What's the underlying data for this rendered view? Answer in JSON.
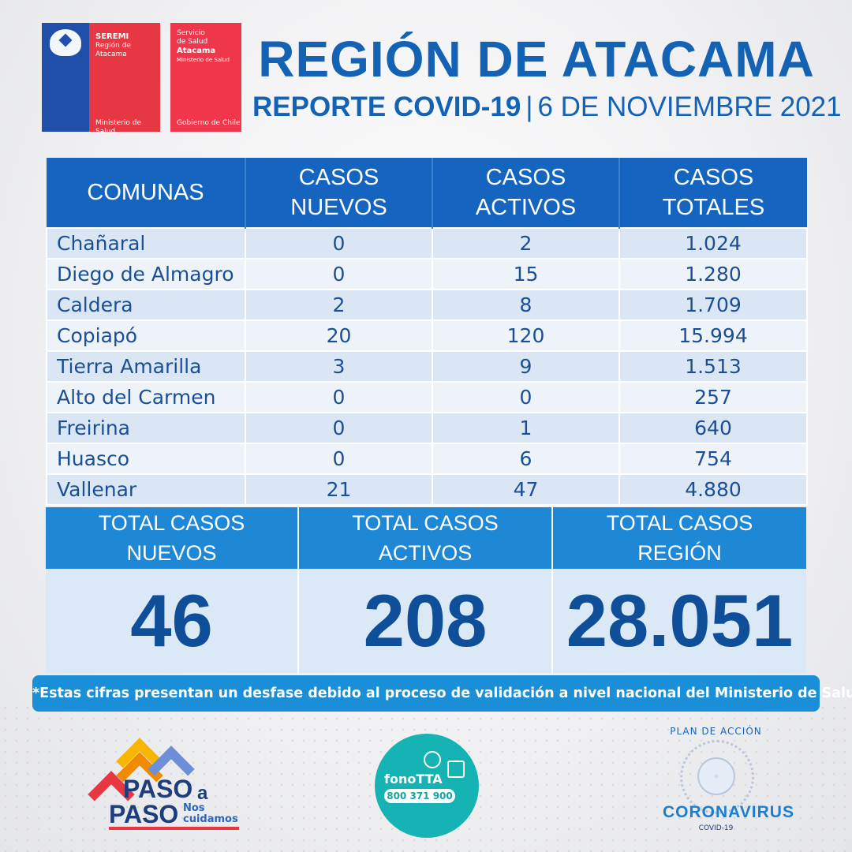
{
  "logos": {
    "seremi": {
      "name": "SEREMI",
      "region": "Región de Atacama",
      "ministry": "Ministerio de Salud"
    },
    "servicio": {
      "line1": "Servicio",
      "line2": "de Salud",
      "line3": "Atacama",
      "ministry": "Ministerio de Salud",
      "gov": "Gobierno de Chile"
    }
  },
  "header": {
    "title": "REGIÓN DE ATACAMA",
    "report": "REPORTE COVID-19",
    "separator": "|",
    "date": "6 DE NOVIEMBRE 2021"
  },
  "table": {
    "columns": [
      {
        "line1": "COMUNAS",
        "line2": ""
      },
      {
        "line1": "CASOS",
        "line2": "NUEVOS"
      },
      {
        "line1": "CASOS",
        "line2": "ACTIVOS"
      },
      {
        "line1": "CASOS",
        "line2": "TOTALES"
      }
    ],
    "rows": [
      {
        "comuna": "Chañaral",
        "nuevos": "0",
        "activos": "2",
        "totales": "1.024"
      },
      {
        "comuna": "Diego de Almagro",
        "nuevos": "0",
        "activos": "15",
        "totales": "1.280"
      },
      {
        "comuna": "Caldera",
        "nuevos": "2",
        "activos": "8",
        "totales": "1.709"
      },
      {
        "comuna": "Copiapó",
        "nuevos": "20",
        "activos": "120",
        "totales": "15.994"
      },
      {
        "comuna": "Tierra Amarilla",
        "nuevos": "3",
        "activos": "9",
        "totales": "1.513"
      },
      {
        "comuna": "Alto del Carmen",
        "nuevos": "0",
        "activos": "0",
        "totales": "257"
      },
      {
        "comuna": "Freirina",
        "nuevos": "0",
        "activos": "1",
        "totales": "640"
      },
      {
        "comuna": "Huasco",
        "nuevos": "0",
        "activos": "6",
        "totales": "754"
      },
      {
        "comuna": "Vallenar",
        "nuevos": "21",
        "activos": "47",
        "totales": "4.880"
      }
    ]
  },
  "totals": [
    {
      "line1": "TOTAL CASOS",
      "line2": "NUEVOS",
      "value": "46"
    },
    {
      "line1": "TOTAL CASOS",
      "line2": "ACTIVOS",
      "value": "208"
    },
    {
      "line1": "TOTAL CASOS",
      "line2": "REGIÓN",
      "value": "28.051"
    }
  ],
  "disclaimer": "*Estas cifras presentan un desfase debido al proceso de validación a nivel nacional del Ministerio de Salud.*",
  "footer": {
    "paso": {
      "word1": "PASO",
      "a": "a",
      "word2": "PASO",
      "nos": "Nos",
      "cuidamos": "cuidamos"
    },
    "fono": {
      "title": "fonoTTA",
      "number": "800 371 900"
    },
    "plan": {
      "top": "PLAN DE ACCIÓN",
      "main": "CORONAVIRUS",
      "sub": "COVID-19"
    }
  },
  "colors": {
    "primary": "#1565c0",
    "accent": "#1e88d6",
    "cell": "#dbe6f4",
    "red": "#e63743"
  }
}
